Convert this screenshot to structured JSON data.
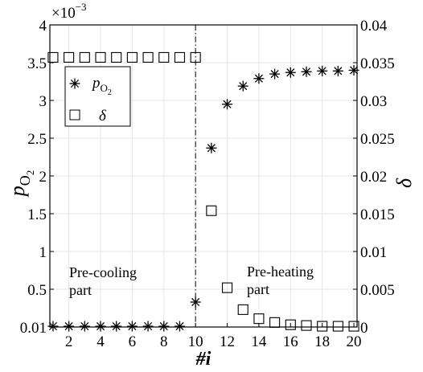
{
  "chart_data": {
    "type": "scatter",
    "x": [
      1,
      2,
      3,
      4,
      5,
      6,
      7,
      8,
      9,
      10,
      11,
      12,
      13,
      14,
      15,
      16,
      17,
      18,
      19,
      20
    ],
    "xlabel": "#i",
    "xlim": [
      0.8,
      20.2
    ],
    "xticks": [
      "2",
      "4",
      "6",
      "8",
      "10",
      "12",
      "14",
      "16",
      "18",
      "20"
    ],
    "ylabel_left": "p",
    "ylabel_left_sub": "O",
    "ylabel_left_subsub": "2",
    "ylim_left": [
      0,
      4
    ],
    "yticks_left": [
      "0.01",
      "0.5",
      "1",
      "1.5",
      "2",
      "2.5",
      "3",
      "3.5",
      "4"
    ],
    "left_exponent": "×10",
    "left_exponent_power": "−3",
    "ylabel_right": "δ",
    "ylim_right": [
      0,
      0.04
    ],
    "yticks_right": [
      "0",
      "0.005",
      "0.01",
      "0.015",
      "0.02",
      "0.025",
      "0.03",
      "0.035",
      "0.04"
    ],
    "series": [
      {
        "name": "p",
        "name_sub": "O",
        "name_subsub": "2",
        "marker": "asterisk",
        "axis": "left",
        "values": [
          0.01,
          0.01,
          0.01,
          0.01,
          0.01,
          0.01,
          0.01,
          0.01,
          0.01,
          0.33,
          2.37,
          2.95,
          3.19,
          3.29,
          3.35,
          3.37,
          3.38,
          3.39,
          3.39,
          3.4
        ]
      },
      {
        "name": "δ",
        "marker": "square",
        "axis": "right",
        "values": [
          0.0357,
          0.0357,
          0.0357,
          0.0357,
          0.0357,
          0.0357,
          0.0357,
          0.0357,
          0.0357,
          0.0357,
          0.0154,
          0.0052,
          0.0023,
          0.0011,
          0.0006,
          0.0003,
          0.0002,
          0.0001,
          0.0001,
          0.0001
        ]
      }
    ],
    "divider_x": 10,
    "annotations": {
      "left_line1": "Pre-cooling",
      "left_line2": "part",
      "right_line1": "Pre-heating",
      "right_line2": "part"
    },
    "grid": true,
    "legend_position": "top-left"
  }
}
